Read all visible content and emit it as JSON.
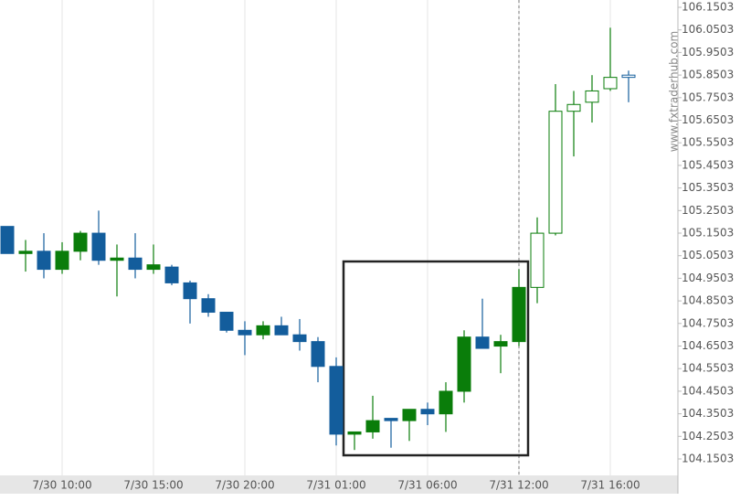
{
  "chart_data": {
    "type": "candlestick",
    "watermark": "www.fxtraderhub.com",
    "categories": [
      null,
      null,
      null,
      "7/30 10:00",
      null,
      null,
      null,
      null,
      "7/30 15:00",
      null,
      null,
      null,
      null,
      "7/30 20:00",
      null,
      null,
      null,
      null,
      "7/31 01:00",
      null,
      null,
      null,
      null,
      "7/31 06:00",
      null,
      null,
      null,
      null,
      "7/31 12:00",
      null,
      null,
      null,
      null,
      "7/31 16:00",
      null
    ],
    "open": [
      105.18,
      105.06,
      105.07,
      104.99,
      105.07,
      105.15,
      105.03,
      105.04,
      104.99,
      105.0,
      104.93,
      104.86,
      104.8,
      104.72,
      104.7,
      104.74,
      104.7,
      104.67,
      104.56,
      104.26,
      104.27,
      104.33,
      104.32,
      104.37,
      104.35,
      104.45,
      104.69,
      104.65,
      104.67,
      104.91,
      105.15,
      105.69,
      105.73,
      105.79,
      105.85
    ],
    "high": [
      105.18,
      105.12,
      105.15,
      105.11,
      105.16,
      105.25,
      105.1,
      105.15,
      105.1,
      105.01,
      104.94,
      104.88,
      104.8,
      104.76,
      104.76,
      104.78,
      104.77,
      104.69,
      104.6,
      104.27,
      104.43,
      104.33,
      104.37,
      104.4,
      104.49,
      104.72,
      104.86,
      104.7,
      104.99,
      105.22,
      105.81,
      105.78,
      105.85,
      106.06,
      105.87
    ],
    "low": [
      105.06,
      104.98,
      104.95,
      104.97,
      105.03,
      105.01,
      104.87,
      104.95,
      104.97,
      104.92,
      104.75,
      104.78,
      104.71,
      104.61,
      104.68,
      104.71,
      104.63,
      104.49,
      104.21,
      104.19,
      104.24,
      104.2,
      104.23,
      104.3,
      104.27,
      104.4,
      104.64,
      104.53,
      104.65,
      104.84,
      105.14,
      105.49,
      105.64,
      105.78,
      105.73
    ],
    "close": [
      105.06,
      105.07,
      104.99,
      105.07,
      105.15,
      105.03,
      105.04,
      104.99,
      105.01,
      104.93,
      104.86,
      104.8,
      104.72,
      104.7,
      104.74,
      104.7,
      104.67,
      104.56,
      104.26,
      104.27,
      104.32,
      104.32,
      104.37,
      104.35,
      104.45,
      104.69,
      104.64,
      104.67,
      104.91,
      105.15,
      105.69,
      105.72,
      105.78,
      105.84,
      105.84
    ],
    "up_color": "#0a7d0a",
    "down_color": "#135d9c",
    "ylim": [
      104.0774,
      106.1827
    ],
    "yticks": [
      106.1503,
      106.0503,
      105.9503,
      105.8503,
      105.7503,
      105.6503,
      105.5503,
      105.4503,
      105.3503,
      105.2503,
      105.1503,
      105.0503,
      104.9503,
      104.8503,
      104.7503,
      104.6503,
      104.5503,
      104.4503,
      104.3503,
      104.2503,
      104.1503
    ],
    "grid": "x"
  }
}
